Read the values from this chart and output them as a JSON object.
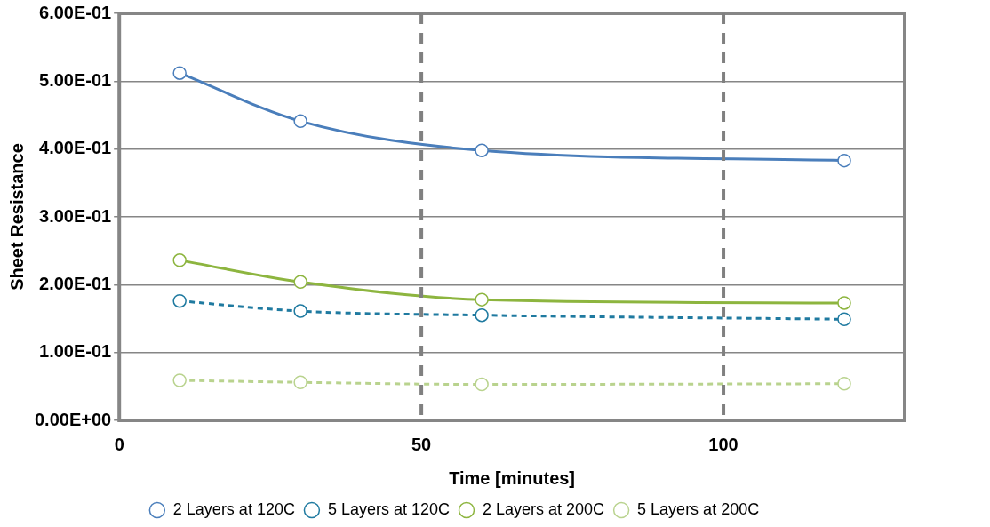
{
  "chart_data": {
    "type": "line",
    "xlabel": "Time [minutes]",
    "ylabel": "Sheet Resistance",
    "x": [
      10,
      30,
      60,
      120
    ],
    "series": [
      {
        "name": "2 Layers at 120C",
        "color": "#4a7ebb",
        "values": [
          0.512,
          0.441,
          0.398,
          0.383
        ],
        "line_style": "solid"
      },
      {
        "name": "5 Layers at 120C",
        "color": "#1f7aa0",
        "values": [
          0.176,
          0.161,
          0.155,
          0.149
        ],
        "line_style": "dashed"
      },
      {
        "name": "2 Layers at 200C",
        "color": "#8db53f",
        "values": [
          0.236,
          0.204,
          0.178,
          0.173
        ],
        "line_style": "solid"
      },
      {
        "name": "5 Layers at 200C",
        "color": "#b9d38e",
        "values": [
          0.059,
          0.056,
          0.053,
          0.054
        ],
        "line_style": "dashed"
      }
    ],
    "xlim": [
      0,
      130
    ],
    "xticks": [
      0,
      50,
      100
    ],
    "ylim": [
      0,
      0.6
    ],
    "yticks": [
      {
        "value": 0,
        "label": "0.00E+00"
      },
      {
        "value": 0.1,
        "label": "1.00E-01"
      },
      {
        "value": 0.2,
        "label": "2.00E-01"
      },
      {
        "value": 0.3,
        "label": "3.00E-01"
      },
      {
        "value": 0.4,
        "label": "4.00E-01"
      },
      {
        "value": 0.5,
        "label": "5.00E-01"
      },
      {
        "value": 0.6,
        "label": "6.00E-01"
      }
    ],
    "ref_lines": [
      {
        "axis": "x",
        "value": 50,
        "color": "#808080",
        "line_style": "dashed"
      },
      {
        "axis": "x",
        "value": 100,
        "color": "#808080",
        "line_style": "dashed"
      }
    ],
    "grid": "y",
    "legend": "bottom",
    "marker": "circle"
  }
}
